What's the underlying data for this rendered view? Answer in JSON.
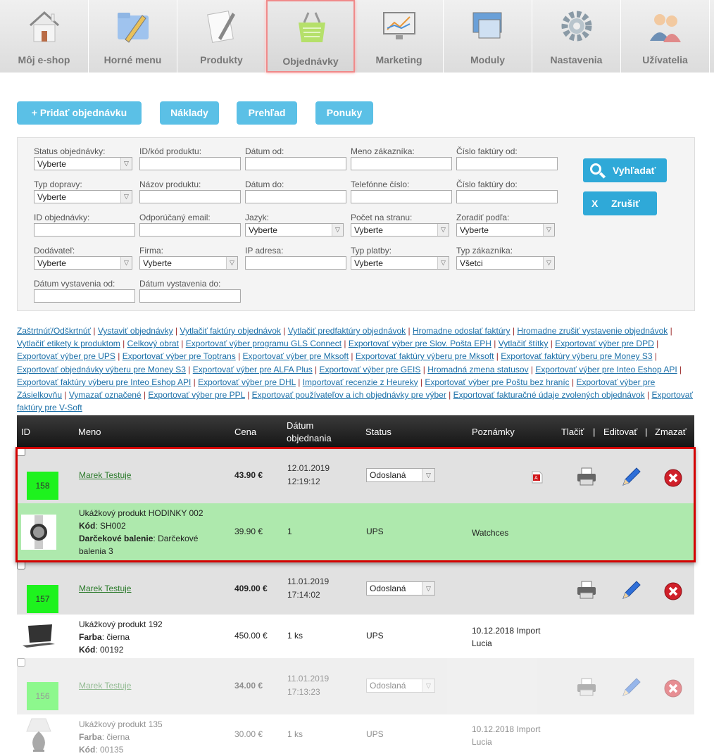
{
  "nav": [
    {
      "label": "Môj e-shop",
      "icon": "house-icon"
    },
    {
      "label": "Horné menu",
      "icon": "folder-pencil-icon"
    },
    {
      "label": "Produkty",
      "icon": "document-pencil-icon"
    },
    {
      "label": "Objednávky",
      "icon": "basket-icon",
      "active": true
    },
    {
      "label": "Marketing",
      "icon": "chart-monitor-icon"
    },
    {
      "label": "Moduly",
      "icon": "modules-icon"
    },
    {
      "label": "Nastavenia",
      "icon": "gear-icon"
    },
    {
      "label": "Užívatelia",
      "icon": "users-icon"
    }
  ],
  "actions": {
    "add": "+   Pridať objednávku",
    "costs": "Náklady",
    "overview": "Prehľad",
    "offers": "Ponuky"
  },
  "filters": [
    {
      "label": "Status objednávky:",
      "type": "select",
      "value": "Vyberte"
    },
    {
      "label": "ID/kód produktu:",
      "type": "input"
    },
    {
      "label": "Dátum od:",
      "type": "input"
    },
    {
      "label": "Meno zákazníka:",
      "type": "input"
    },
    {
      "label": "Číslo faktúry od:",
      "type": "input"
    },
    {
      "label": "Typ dopravy:",
      "type": "select",
      "value": "Vyberte"
    },
    {
      "label": "Názov produktu:",
      "type": "input"
    },
    {
      "label": "Dátum do:",
      "type": "input"
    },
    {
      "label": "Telefónne číslo:",
      "type": "input"
    },
    {
      "label": "Číslo faktúry do:",
      "type": "input"
    },
    {
      "label": "ID objednávky:",
      "type": "input"
    },
    {
      "label": "Odporúčaný email:",
      "type": "input"
    },
    {
      "label": "Jazyk:",
      "type": "select",
      "value": "Vyberte"
    },
    {
      "label": "Počet na stranu:",
      "type": "select",
      "value": "Vyberte"
    },
    {
      "label": "Zoradiť podľa:",
      "type": "select",
      "value": "Vyberte"
    },
    {
      "label": "Dodávateľ:",
      "type": "select",
      "value": "Vyberte"
    },
    {
      "label": "Firma:",
      "type": "select",
      "value": "Vyberte"
    },
    {
      "label": "IP adresa:",
      "type": "input"
    },
    {
      "label": "Typ platby:",
      "type": "select",
      "value": "Vyberte"
    },
    {
      "label": "Typ zákazníka:",
      "type": "select",
      "value": "Všetci"
    },
    {
      "label": "Dátum vystavenia od:",
      "type": "input"
    },
    {
      "label": "Dátum vystavenia do:",
      "type": "input"
    }
  ],
  "search": {
    "label": "Vyhľadať",
    "cancel": "Zrušiť",
    "cancel_icon": "X"
  },
  "links": [
    "Zaštrtnúť/Odškrtnúť",
    "Vystaviť objednávky",
    "Vytlačiť faktúry objednávok",
    "Vytlačiť predfaktúry objednávok",
    "Hromadne odoslať faktúry",
    "Hromadne zrušiť vystavenie objednávok",
    "Vytlačiť etikety k produktom",
    "Celkový obrat",
    "Exportovať výber programu GLS Connect",
    "Exportovať výber pre Slov. Pošta EPH",
    "Vytlačiť štítky",
    "Exportovať výber pre DPD",
    "Exportovať výber pre UPS",
    "Exportovať výber pre Toptrans",
    "Exportovať výber pre Mksoft",
    "Exportovať faktúry výberu pre Mksoft",
    "Exportovať faktúry výberu pre Money S3",
    "Exportovať objednávky výberu pre Money S3",
    "Exportovať výber pre ALFA Plus",
    "Exportovať výber pre GEIS",
    "Hromadná zmena statusov",
    "Exportovať výber pre Inteo Eshop API",
    "Exportovať faktúry výberu pre Inteo Eshop API",
    "Exportovať výber pre DHL",
    "Importovať recenzie z Heureky",
    "Exportovať výber pre Poštu bez hraníc",
    "Exportovať výber pre Zásielkovňu",
    "Vymazať označené",
    "Exportovať výber pre PPL",
    "Exportovať používateľov a ich objednávky pre výber",
    "Exportovať fakturačné údaje zvolených objednávok",
    "Exportovať faktúry pre V-Soft"
  ],
  "table": {
    "headers": {
      "id": "ID",
      "name": "Meno",
      "price": "Cena",
      "date1": "Dátum",
      "date2": "objednania",
      "status": "Status",
      "notes": "Poznámky",
      "print": "Tlačiť",
      "edit": "Editovať",
      "delete": "Zmazať",
      "sep": "|"
    },
    "orders": [
      {
        "id": "158",
        "customer": "Marek Testuje",
        "total": "43.90 €",
        "date": "12.01.2019",
        "time": "12:19:12",
        "status": "Odoslaná",
        "pdf": true,
        "highlighted": true,
        "faded": false,
        "product": {
          "image": "watch",
          "name": "Ukážkový produkt HODINKY 002",
          "attrs": [
            [
              "Kód",
              ": SH002"
            ],
            [
              "Darčekové balenie",
              ": Darčekové balenia 3"
            ]
          ],
          "price": "39.90 €",
          "qty": "1",
          "shipping": "UPS",
          "note": "Watchces"
        }
      },
      {
        "id": "157",
        "customer": "Marek Testuje",
        "total": "409.00 €",
        "date": "11.01.2019",
        "time": "17:14:02",
        "status": "Odoslaná",
        "pdf": false,
        "highlighted": false,
        "faded": false,
        "product": {
          "image": "laptop",
          "name": "Ukážkový produkt 192",
          "attrs": [
            [
              "Farba",
              ": čierna"
            ],
            [
              "Kód",
              ": 00192"
            ]
          ],
          "price": "450.00 €",
          "qty": "1 ks",
          "shipping": "UPS",
          "note": "10.12.2018 Import Lucia"
        }
      },
      {
        "id": "156",
        "customer": "Marek Testuje",
        "total": "34.00 €",
        "date": "11.01.2019",
        "time": "17:13:23",
        "status": "Odoslaná",
        "pdf": false,
        "highlighted": false,
        "faded": true,
        "product": {
          "image": "lamp",
          "name": "Ukážkový produkt 135",
          "attrs": [
            [
              "Farba",
              ": čierna"
            ],
            [
              "Kód",
              ": 00135"
            ]
          ],
          "price": "30.00 €",
          "qty": "1 ks",
          "shipping": "UPS",
          "note": "10.12.2018 Import Lucia"
        }
      }
    ]
  }
}
